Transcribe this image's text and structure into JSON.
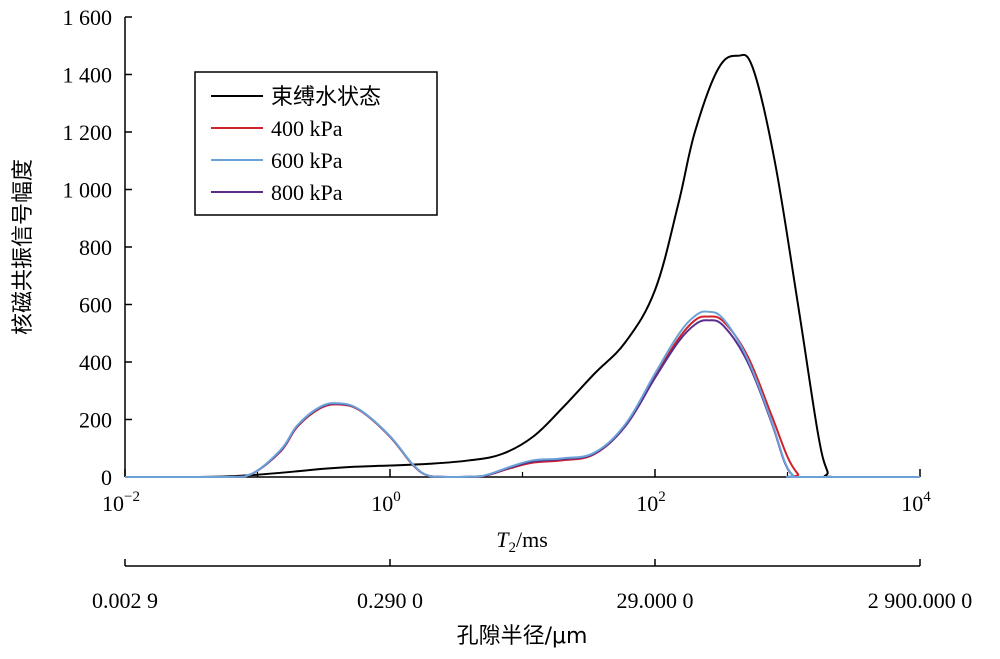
{
  "chart_data": {
    "type": "line",
    "xlabel_italic": "T",
    "xlabel_sub": "2",
    "xlabel_unit": "/ms",
    "ylabel": "核磁共振信号幅度",
    "secondary_xlabel": "孔隙半径/μm",
    "xscale": "log",
    "xlim": [
      0.01,
      10000
    ],
    "ylim": [
      0,
      1600
    ],
    "x_ticks": [
      {
        "base": "10",
        "exp": "−2",
        "value": 0.01
      },
      {
        "base": "10",
        "exp": "0",
        "value": 1
      },
      {
        "base": "10",
        "exp": "2",
        "value": 100
      },
      {
        "base": "10",
        "exp": "4",
        "value": 10000
      }
    ],
    "y_ticks": [
      {
        "label": "0",
        "value": 0
      },
      {
        "label": "200",
        "value": 200
      },
      {
        "label": "400",
        "value": 400
      },
      {
        "label": "600",
        "value": 600
      },
      {
        "label": "800",
        "value": 800
      },
      {
        "label": "1 000",
        "value": 1000
      },
      {
        "label": "1 200",
        "value": 1200
      },
      {
        "label": "1 400",
        "value": 1400
      },
      {
        "label": "1 600",
        "value": 1600
      }
    ],
    "secondary_ticks": [
      {
        "label": "0.002 9",
        "value": 0.01
      },
      {
        "label": "0.290 0",
        "value": 1
      },
      {
        "label": "29.000 0",
        "value": 100
      },
      {
        "label": "2 900.000 0",
        "value": 10000
      }
    ],
    "legend_position": "top-left",
    "series": [
      {
        "name": "束缚水状态",
        "color": "#000000",
        "points": [
          [
            0.01,
            0
          ],
          [
            0.035,
            0
          ],
          [
            0.06,
            2
          ],
          [
            0.1,
            8
          ],
          [
            0.2,
            20
          ],
          [
            0.3,
            28
          ],
          [
            0.5,
            35
          ],
          [
            1,
            40
          ],
          [
            2,
            46
          ],
          [
            4,
            58
          ],
          [
            7,
            80
          ],
          [
            12,
            140
          ],
          [
            20,
            240
          ],
          [
            35,
            360
          ],
          [
            60,
            470
          ],
          [
            100,
            650
          ],
          [
            150,
            950
          ],
          [
            200,
            1200
          ],
          [
            300,
            1420
          ],
          [
            420,
            1465
          ],
          [
            550,
            1420
          ],
          [
            800,
            1100
          ],
          [
            1200,
            600
          ],
          [
            1700,
            150
          ],
          [
            2000,
            20
          ],
          [
            2200,
            0
          ],
          [
            10000,
            0
          ]
        ]
      },
      {
        "name": "400 kPa",
        "color": "#d0202a",
        "points": [
          [
            0.01,
            0
          ],
          [
            0.06,
            0
          ],
          [
            0.09,
            10
          ],
          [
            0.15,
            90
          ],
          [
            0.2,
            175
          ],
          [
            0.3,
            240
          ],
          [
            0.42,
            252
          ],
          [
            0.6,
            230
          ],
          [
            1,
            140
          ],
          [
            1.5,
            40
          ],
          [
            2,
            3
          ],
          [
            3,
            0
          ],
          [
            5,
            3
          ],
          [
            8,
            30
          ],
          [
            12,
            50
          ],
          [
            20,
            58
          ],
          [
            35,
            80
          ],
          [
            60,
            180
          ],
          [
            100,
            350
          ],
          [
            150,
            480
          ],
          [
            200,
            545
          ],
          [
            250,
            558
          ],
          [
            330,
            540
          ],
          [
            500,
            420
          ],
          [
            750,
            220
          ],
          [
            1000,
            70
          ],
          [
            1200,
            10
          ],
          [
            1300,
            0
          ],
          [
            10000,
            0
          ]
        ]
      },
      {
        "name": "600 kPa",
        "color": "#6aa2d8",
        "points": [
          [
            0.01,
            0
          ],
          [
            0.06,
            0
          ],
          [
            0.09,
            10
          ],
          [
            0.15,
            95
          ],
          [
            0.2,
            180
          ],
          [
            0.3,
            245
          ],
          [
            0.42,
            256
          ],
          [
            0.6,
            232
          ],
          [
            1,
            142
          ],
          [
            1.5,
            42
          ],
          [
            2,
            3
          ],
          [
            3,
            0
          ],
          [
            5,
            4
          ],
          [
            8,
            35
          ],
          [
            12,
            58
          ],
          [
            20,
            65
          ],
          [
            35,
            85
          ],
          [
            60,
            185
          ],
          [
            100,
            360
          ],
          [
            150,
            495
          ],
          [
            200,
            560
          ],
          [
            250,
            575
          ],
          [
            330,
            548
          ],
          [
            500,
            410
          ],
          [
            750,
            200
          ],
          [
            950,
            55
          ],
          [
            1100,
            6
          ],
          [
            1200,
            0
          ],
          [
            10000,
            0
          ]
        ]
      },
      {
        "name": "800 kPa",
        "color": "#5a2d8c",
        "points": [
          [
            0.01,
            0
          ],
          [
            0.06,
            0
          ],
          [
            0.09,
            10
          ],
          [
            0.15,
            92
          ],
          [
            0.2,
            178
          ],
          [
            0.3,
            243
          ],
          [
            0.42,
            254
          ],
          [
            0.6,
            231
          ],
          [
            1,
            141
          ],
          [
            1.5,
            41
          ],
          [
            2,
            3
          ],
          [
            3,
            0
          ],
          [
            5,
            3
          ],
          [
            8,
            32
          ],
          [
            12,
            54
          ],
          [
            20,
            62
          ],
          [
            35,
            82
          ],
          [
            60,
            178
          ],
          [
            100,
            345
          ],
          [
            150,
            470
          ],
          [
            200,
            530
          ],
          [
            250,
            545
          ],
          [
            330,
            525
          ],
          [
            500,
            400
          ],
          [
            750,
            195
          ],
          [
            950,
            52
          ],
          [
            1100,
            5
          ],
          [
            1200,
            0
          ],
          [
            10000,
            0
          ]
        ]
      }
    ]
  }
}
